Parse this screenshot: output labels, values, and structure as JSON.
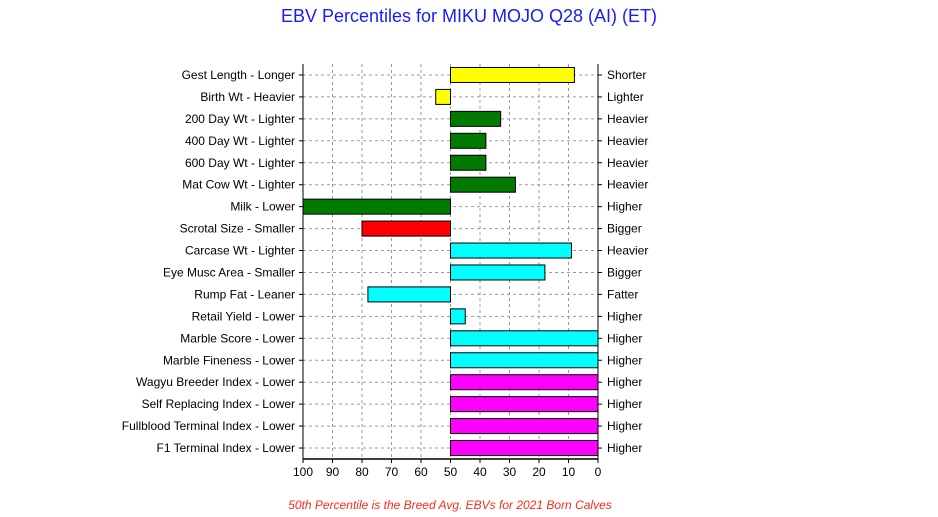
{
  "chart_data": {
    "type": "bar",
    "title": "EBV Percentiles for MIKU MOJO Q28 (AI) (ET)",
    "footnote": "50th Percentile is the Breed Avg. EBVs for 2021 Born Calves",
    "x_axis": {
      "reversed": true,
      "range": [
        100,
        0
      ],
      "baseline": 50,
      "ticks": [
        "100",
        "90",
        "80",
        "70",
        "60",
        "50",
        "40",
        "30",
        "20",
        "10",
        "0"
      ]
    },
    "grid": true,
    "traits": [
      {
        "left_label": "Gest Length - Longer",
        "right_label": "Shorter",
        "percentile": 8,
        "color": "#ffff00"
      },
      {
        "left_label": "Birth Wt - Heavier",
        "right_label": "Lighter",
        "percentile": 55,
        "color": "#ffff00"
      },
      {
        "left_label": "200 Day Wt - Lighter",
        "right_label": "Heavier",
        "percentile": 33,
        "color": "#007a00"
      },
      {
        "left_label": "400 Day Wt - Lighter",
        "right_label": "Heavier",
        "percentile": 38,
        "color": "#007a00"
      },
      {
        "left_label": "600 Day Wt - Lighter",
        "right_label": "Heavier",
        "percentile": 38,
        "color": "#007a00"
      },
      {
        "left_label": "Mat Cow Wt - Lighter",
        "right_label": "Heavier",
        "percentile": 28,
        "color": "#007a00"
      },
      {
        "left_label": "Milk - Lower",
        "right_label": "Higher",
        "percentile": 100,
        "color": "#007a00"
      },
      {
        "left_label": "Scrotal Size - Smaller",
        "right_label": "Bigger",
        "percentile": 80,
        "color": "#ff0000"
      },
      {
        "left_label": "Carcase Wt - Lighter",
        "right_label": "Heavier",
        "percentile": 9,
        "color": "#00ffff"
      },
      {
        "left_label": "Eye Musc Area - Smaller",
        "right_label": "Bigger",
        "percentile": 18,
        "color": "#00ffff"
      },
      {
        "left_label": "Rump Fat - Leaner",
        "right_label": "Fatter",
        "percentile": 78,
        "color": "#00ffff"
      },
      {
        "left_label": "Retail Yield - Lower",
        "right_label": "Higher",
        "percentile": 45,
        "color": "#00ffff"
      },
      {
        "left_label": "Marble Score - Lower",
        "right_label": "Higher",
        "percentile": 0,
        "color": "#00ffff"
      },
      {
        "left_label": "Marble Fineness - Lower",
        "right_label": "Higher",
        "percentile": 0,
        "color": "#00ffff"
      },
      {
        "left_label": "Wagyu Breeder Index - Lower",
        "right_label": "Higher",
        "percentile": 0,
        "color": "#ff00ff"
      },
      {
        "left_label": "Self Replacing Index - Lower",
        "right_label": "Higher",
        "percentile": 0,
        "color": "#ff00ff"
      },
      {
        "left_label": "Fullblood Terminal Index - Lower",
        "right_label": "Higher",
        "percentile": 0,
        "color": "#ff00ff"
      },
      {
        "left_label": "F1 Terminal Index - Lower",
        "right_label": "Higher",
        "percentile": 0,
        "color": "#ff00ff"
      }
    ]
  }
}
